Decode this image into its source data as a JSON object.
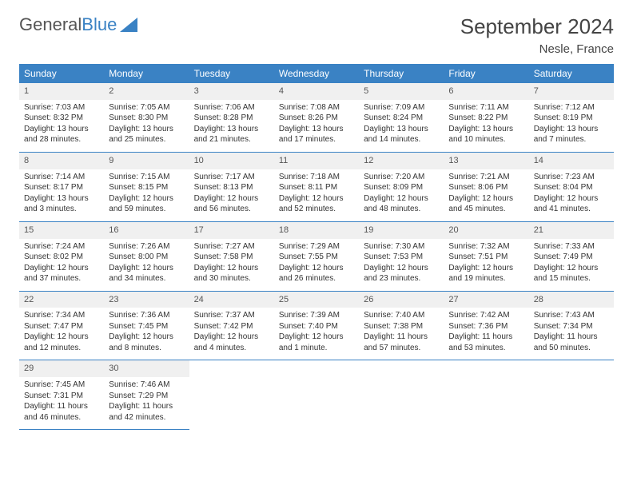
{
  "logo": {
    "text1": "General",
    "text2": "Blue"
  },
  "title": "September 2024",
  "location": "Nesle, France",
  "colors": {
    "accent": "#3a82c4",
    "header_bg": "#3a82c4",
    "daynum_bg": "#f0f0f0",
    "text": "#333333",
    "bg": "#ffffff"
  },
  "day_headers": [
    "Sunday",
    "Monday",
    "Tuesday",
    "Wednesday",
    "Thursday",
    "Friday",
    "Saturday"
  ],
  "weeks": [
    [
      {
        "n": "1",
        "sr": "7:03 AM",
        "ss": "8:32 PM",
        "dl": "13 hours and 28 minutes."
      },
      {
        "n": "2",
        "sr": "7:05 AM",
        "ss": "8:30 PM",
        "dl": "13 hours and 25 minutes."
      },
      {
        "n": "3",
        "sr": "7:06 AM",
        "ss": "8:28 PM",
        "dl": "13 hours and 21 minutes."
      },
      {
        "n": "4",
        "sr": "7:08 AM",
        "ss": "8:26 PM",
        "dl": "13 hours and 17 minutes."
      },
      {
        "n": "5",
        "sr": "7:09 AM",
        "ss": "8:24 PM",
        "dl": "13 hours and 14 minutes."
      },
      {
        "n": "6",
        "sr": "7:11 AM",
        "ss": "8:22 PM",
        "dl": "13 hours and 10 minutes."
      },
      {
        "n": "7",
        "sr": "7:12 AM",
        "ss": "8:19 PM",
        "dl": "13 hours and 7 minutes."
      }
    ],
    [
      {
        "n": "8",
        "sr": "7:14 AM",
        "ss": "8:17 PM",
        "dl": "13 hours and 3 minutes."
      },
      {
        "n": "9",
        "sr": "7:15 AM",
        "ss": "8:15 PM",
        "dl": "12 hours and 59 minutes."
      },
      {
        "n": "10",
        "sr": "7:17 AM",
        "ss": "8:13 PM",
        "dl": "12 hours and 56 minutes."
      },
      {
        "n": "11",
        "sr": "7:18 AM",
        "ss": "8:11 PM",
        "dl": "12 hours and 52 minutes."
      },
      {
        "n": "12",
        "sr": "7:20 AM",
        "ss": "8:09 PM",
        "dl": "12 hours and 48 minutes."
      },
      {
        "n": "13",
        "sr": "7:21 AM",
        "ss": "8:06 PM",
        "dl": "12 hours and 45 minutes."
      },
      {
        "n": "14",
        "sr": "7:23 AM",
        "ss": "8:04 PM",
        "dl": "12 hours and 41 minutes."
      }
    ],
    [
      {
        "n": "15",
        "sr": "7:24 AM",
        "ss": "8:02 PM",
        "dl": "12 hours and 37 minutes."
      },
      {
        "n": "16",
        "sr": "7:26 AM",
        "ss": "8:00 PM",
        "dl": "12 hours and 34 minutes."
      },
      {
        "n": "17",
        "sr": "7:27 AM",
        "ss": "7:58 PM",
        "dl": "12 hours and 30 minutes."
      },
      {
        "n": "18",
        "sr": "7:29 AM",
        "ss": "7:55 PM",
        "dl": "12 hours and 26 minutes."
      },
      {
        "n": "19",
        "sr": "7:30 AM",
        "ss": "7:53 PM",
        "dl": "12 hours and 23 minutes."
      },
      {
        "n": "20",
        "sr": "7:32 AM",
        "ss": "7:51 PM",
        "dl": "12 hours and 19 minutes."
      },
      {
        "n": "21",
        "sr": "7:33 AM",
        "ss": "7:49 PM",
        "dl": "12 hours and 15 minutes."
      }
    ],
    [
      {
        "n": "22",
        "sr": "7:34 AM",
        "ss": "7:47 PM",
        "dl": "12 hours and 12 minutes."
      },
      {
        "n": "23",
        "sr": "7:36 AM",
        "ss": "7:45 PM",
        "dl": "12 hours and 8 minutes."
      },
      {
        "n": "24",
        "sr": "7:37 AM",
        "ss": "7:42 PM",
        "dl": "12 hours and 4 minutes."
      },
      {
        "n": "25",
        "sr": "7:39 AM",
        "ss": "7:40 PM",
        "dl": "12 hours and 1 minute."
      },
      {
        "n": "26",
        "sr": "7:40 AM",
        "ss": "7:38 PM",
        "dl": "11 hours and 57 minutes."
      },
      {
        "n": "27",
        "sr": "7:42 AM",
        "ss": "7:36 PM",
        "dl": "11 hours and 53 minutes."
      },
      {
        "n": "28",
        "sr": "7:43 AM",
        "ss": "7:34 PM",
        "dl": "11 hours and 50 minutes."
      }
    ],
    [
      {
        "n": "29",
        "sr": "7:45 AM",
        "ss": "7:31 PM",
        "dl": "11 hours and 46 minutes."
      },
      {
        "n": "30",
        "sr": "7:46 AM",
        "ss": "7:29 PM",
        "dl": "11 hours and 42 minutes."
      },
      null,
      null,
      null,
      null,
      null
    ]
  ],
  "labels": {
    "sunrise": "Sunrise:",
    "sunset": "Sunset:",
    "daylight": "Daylight:"
  }
}
